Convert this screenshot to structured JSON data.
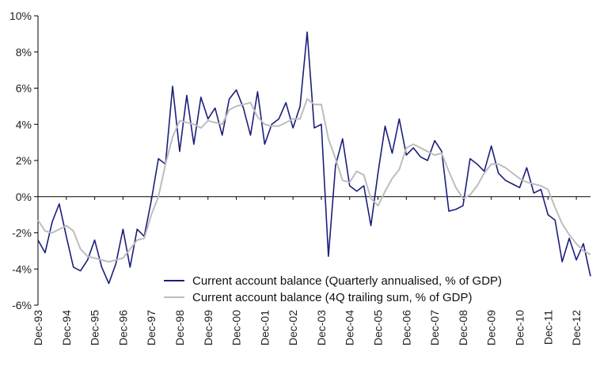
{
  "chart_data": {
    "type": "line",
    "title": "",
    "xlabel": "",
    "ylabel": "",
    "ylim": [
      -6,
      10
    ],
    "yticks": [
      -6,
      -4,
      -2,
      0,
      2,
      4,
      6,
      8,
      10
    ],
    "ytick_labels": [
      "-6%",
      "-4%",
      "-2%",
      "0%",
      "2%",
      "4%",
      "6%",
      "8%",
      "10%"
    ],
    "x_start_label": "Dec-93",
    "x_tick_labels": [
      "Dec-93",
      "Dec-94",
      "Dec-95",
      "Dec-96",
      "Dec-97",
      "Dec-98",
      "Dec-99",
      "Dec-00",
      "Dec-01",
      "Dec-02",
      "Dec-03",
      "Dec-04",
      "Dec-05",
      "Dec-06",
      "Dec-07",
      "Dec-08",
      "Dec-09",
      "Dec-10",
      "Dec-11",
      "Dec-12"
    ],
    "series": [
      {
        "name": "Current account balance (Quarterly annualised, % of GDP)",
        "color": "#1b1f7a",
        "values": [
          -2.4,
          -3.1,
          -1.4,
          -0.4,
          -2.2,
          -3.9,
          -4.1,
          -3.5,
          -2.4,
          -3.9,
          -4.8,
          -3.7,
          -1.8,
          -3.9,
          -1.8,
          -2.2,
          -0.2,
          2.1,
          1.8,
          6.1,
          2.5,
          5.6,
          2.9,
          5.5,
          4.3,
          4.9,
          3.4,
          5.4,
          5.9,
          4.9,
          3.4,
          5.8,
          2.9,
          4.0,
          4.3,
          5.2,
          3.8,
          5.0,
          9.1,
          3.8,
          4.0,
          -3.3,
          1.7,
          3.2,
          0.6,
          0.3,
          0.6,
          -1.6,
          1.3,
          3.9,
          2.4,
          4.3,
          2.3,
          2.7,
          2.2,
          2.0,
          3.1,
          2.5,
          -0.8,
          -0.7,
          -0.5,
          2.1,
          1.8,
          1.4,
          2.8,
          1.3,
          0.9,
          0.7,
          0.5,
          1.6,
          0.2,
          0.4,
          -1.0,
          -1.3,
          -3.6,
          -2.3,
          -3.5,
          -2.6,
          -4.4
        ]
      },
      {
        "name": "Current account balance (4Q trailing sum, % of GDP)",
        "color": "#bdbdbd",
        "values": [
          -1.3,
          -1.9,
          -2.0,
          -1.8,
          -1.6,
          -1.9,
          -2.9,
          -3.3,
          -3.4,
          -3.5,
          -3.6,
          -3.5,
          -3.4,
          -2.9,
          -2.4,
          -2.3,
          -1.0,
          0.0,
          1.8,
          3.3,
          4.2,
          4.1,
          4.0,
          3.8,
          4.2,
          4.1,
          4.0,
          4.8,
          5.0,
          5.1,
          5.2,
          4.4,
          4.0,
          3.9,
          3.9,
          4.1,
          4.3,
          4.3,
          5.4,
          5.1,
          5.1,
          3.2,
          2.1,
          0.9,
          0.8,
          1.4,
          1.2,
          -0.1,
          -0.5,
          0.3,
          1.0,
          1.5,
          2.7,
          2.9,
          2.7,
          2.5,
          2.3,
          2.4,
          1.4,
          0.5,
          -0.1,
          0.1,
          0.6,
          1.3,
          1.8,
          1.8,
          1.6,
          1.3,
          1.0,
          0.8,
          0.7,
          0.6,
          0.4,
          -0.6,
          -1.5,
          -2.1,
          -2.6,
          -3.0,
          -3.2
        ]
      }
    ],
    "legend": "bottom-right"
  }
}
